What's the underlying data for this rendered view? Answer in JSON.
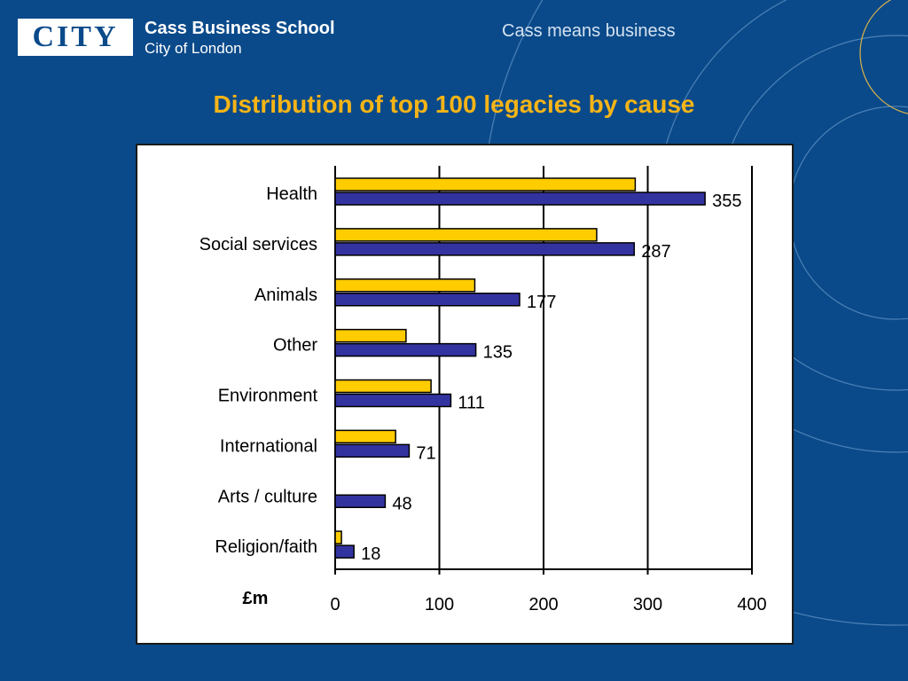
{
  "header": {
    "logo_text": "CITY",
    "school_name": "Cass Business School",
    "school_city": "City of London",
    "tagline": "Cass means business"
  },
  "colors": {
    "background": "#0a4a8a",
    "title": "#f6b417",
    "series_yellow": "#ffcc00",
    "series_blue": "#3333a0"
  },
  "chart_data": {
    "type": "bar",
    "orientation": "horizontal",
    "title": "Distribution of top 100 legacies by cause",
    "xlabel": "£m",
    "xlim": [
      0,
      400
    ],
    "xticks": [
      0,
      100,
      200,
      300,
      400
    ],
    "grid": true,
    "categories": [
      "Health",
      "Social services",
      "Animals",
      "Other",
      "Environment",
      "International",
      "Arts / culture",
      "Religion/faith"
    ],
    "series": [
      {
        "values": [
          288,
          251,
          134,
          68,
          92,
          58,
          0,
          6
        ],
        "color": "#ffcc00"
      },
      {
        "values": [
          355,
          287,
          177,
          135,
          111,
          71,
          48,
          18
        ],
        "color": "#3333a0",
        "labels": [
          "355",
          "287",
          "177",
          "135",
          "111",
          "71",
          "48",
          "18"
        ]
      }
    ]
  }
}
